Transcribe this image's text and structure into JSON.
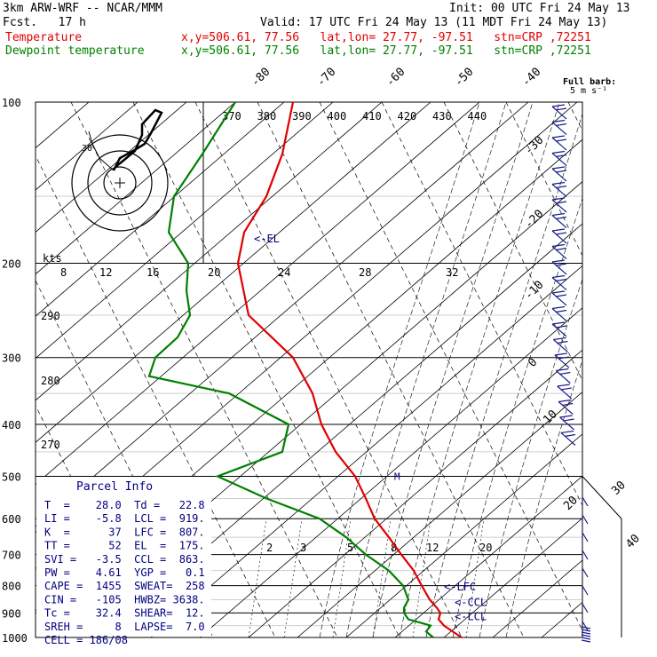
{
  "header": {
    "model": "3km ARW-WRF -- NCAR/MMM",
    "init": "Init: 00 UTC Fri 24 May 13",
    "fcst": "Fcst.   17 h",
    "valid": "Valid: 17 UTC Fri 24 May 13 (11 MDT Fri 24 May 13)",
    "temp_label": "Temperature",
    "dew_label": "Dewpoint temperature",
    "temp_info": "x,y=506.61, 77.56   lat,lon= 27.77, -97.51   stn=CRP ,72251",
    "dew_info": "x,y=506.61, 77.56   lat,lon= 27.77, -97.51   stn=CRP ,72251"
  },
  "colors": {
    "temperature": "#e00000",
    "dewpoint": "#008000",
    "wind": "#1a1a8c",
    "text": "#000080"
  },
  "chart_data": {
    "type": "line",
    "title": "",
    "ylabel": "",
    "pressure_ticks": [
      "100",
      "200",
      "300",
      "400",
      "500",
      "600",
      "700",
      "800",
      "900",
      "1000"
    ],
    "isotherm_labels": [
      "-80",
      "-70",
      "-60",
      "-50",
      "-40",
      "-30",
      "-20",
      "-10",
      "0",
      "10",
      "20",
      "30",
      "40"
    ],
    "theta_labels": [
      "370",
      "380",
      "390",
      "400",
      "410",
      "420",
      "430",
      "440"
    ],
    "theta_left_labels": [
      "290",
      "280",
      "270"
    ],
    "mixing_ratio_labels": [
      "2",
      "3",
      "5",
      "8",
      "12",
      "20"
    ],
    "wind_labels": [
      "kts",
      "8",
      "12",
      "16",
      "20",
      "24",
      "28",
      "32"
    ],
    "series": [
      {
        "name": "Temperature",
        "p": [
          100,
          125,
          150,
          175,
          200,
          250,
          300,
          350,
          400,
          450,
          500,
          550,
          600,
          650,
          700,
          750,
          800,
          850,
          880,
          900,
          925,
          950,
          975,
          1000
        ],
        "x": [
          330,
          318,
          300,
          275,
          268,
          280,
          330,
          352,
          362,
          378,
          400,
          412,
          422,
          438,
          452,
          466,
          475,
          484,
          492,
          496,
          494,
          500,
          510,
          520
        ]
      },
      {
        "name": "Dewpoint temperature",
        "p": [
          100,
          125,
          150,
          175,
          200,
          225,
          250,
          275,
          300,
          325,
          350,
          400,
          450,
          500,
          550,
          600,
          650,
          700,
          750,
          800,
          850,
          880,
          900,
          925,
          950,
          975,
          1000
        ],
        "x": [
          265,
          228,
          196,
          190,
          212,
          210,
          214,
          200,
          175,
          168,
          258,
          325,
          318,
          245,
          300,
          360,
          390,
          412,
          438,
          454,
          460,
          455,
          455,
          460,
          485,
          480,
          488
        ]
      }
    ],
    "levels": [
      {
        "label": "<-EL",
        "p": 180
      },
      {
        "label": "<-LFC",
        "p": 805
      },
      {
        "label": "<-CCL",
        "p": 860
      },
      {
        "label": "<-LCL",
        "p": 915
      }
    ],
    "parcel_info": {
      "title": "Parcel Info",
      "rows": [
        "T  =    28.0  Td =   22.8",
        "LI =    -5.8  LCL =  919.",
        "K  =      37  LFC =  807.",
        "TT =      52  EL  =  175.",
        "SVI =   -3.5  CCL =  863.",
        "PW =    4.61  YGP =   0.1",
        "CAPE =  1455  SWEAT=  258",
        "CIN =   -105  HWBZ= 3638.",
        "Tc =    32.4  SHEAR=  12.",
        "SREH =     8  LAPSE=  7.0",
        "CELL = 186/08"
      ]
    },
    "full_barb": [
      "Full barb:",
      "5 m s⁻¹"
    ],
    "hodograph_label": "30"
  }
}
